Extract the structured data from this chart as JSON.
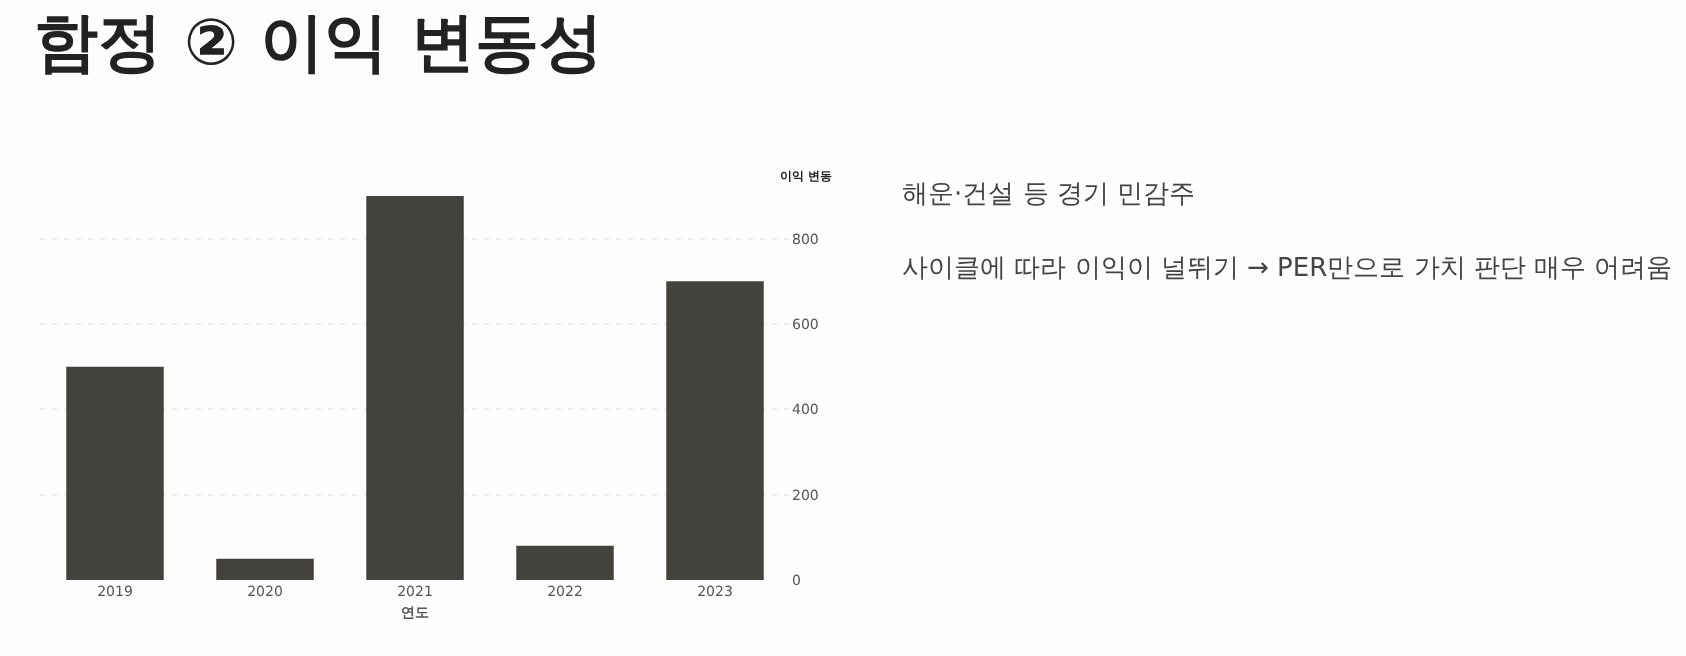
{
  "chart_data": {
    "type": "bar",
    "title": "함정 ② 이익 변동성",
    "xlabel": "연도",
    "ylabel": "이익 변동",
    "categories": [
      "2019",
      "2020",
      "2021",
      "2022",
      "2023"
    ],
    "values": [
      500,
      50,
      900,
      80,
      700
    ],
    "color": "#43423c",
    "ylim": [
      0,
      900
    ],
    "yticks": [
      0,
      200,
      400,
      600,
      800
    ],
    "grid": "y",
    "annotations": [
      "해운·건설 등 경기 민감주",
      "사이클에 따라 이익이 널뛰기 → PER만으로 가치 판단 매우 어려움"
    ]
  }
}
